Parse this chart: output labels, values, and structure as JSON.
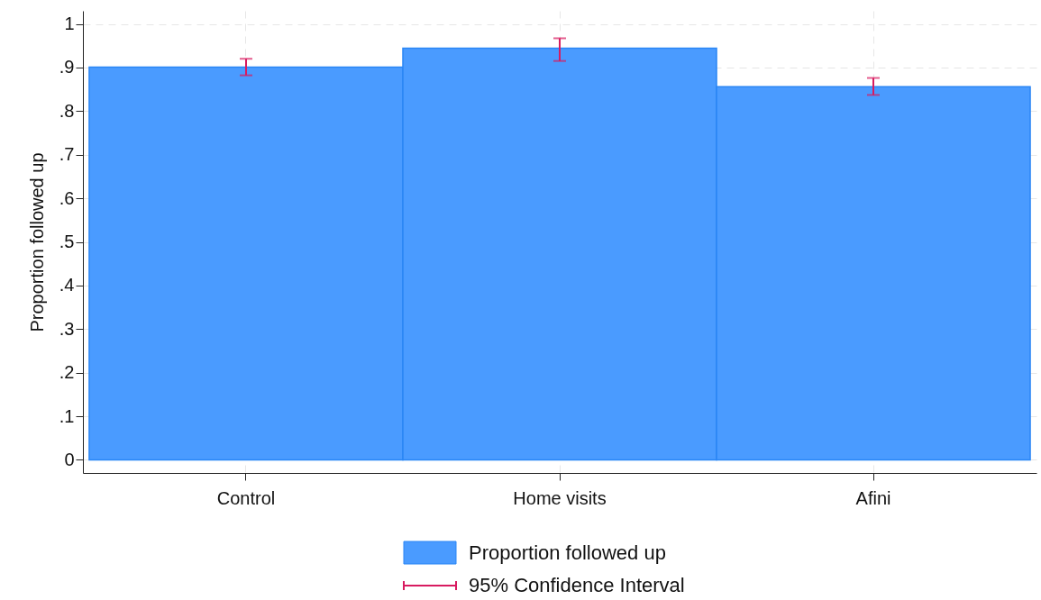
{
  "chart_data": {
    "type": "bar",
    "ylabel": "Proportion followed up",
    "categories": [
      "Control",
      "Home visits",
      "Afini"
    ],
    "series": [
      {
        "name": "Proportion followed up",
        "color": "#4a9bff",
        "values": [
          0.901,
          0.944,
          0.856
        ],
        "errors": [
          [
            0.882,
            0.92
          ],
          [
            0.915,
            0.967
          ],
          [
            0.837,
            0.876
          ]
        ]
      }
    ],
    "ylim": [
      -0.03,
      1.03
    ],
    "yticks": [
      {
        "value": 0,
        "label": "0"
      },
      {
        "value": 0.1,
        "label": ".1"
      },
      {
        "value": 0.2,
        "label": ".2"
      },
      {
        "value": 0.3,
        "label": ".3"
      },
      {
        "value": 0.4,
        "label": ".4"
      },
      {
        "value": 0.5,
        "label": ".5"
      },
      {
        "value": 0.6,
        "label": ".6"
      },
      {
        "value": 0.7,
        "label": ".7"
      },
      {
        "value": 0.8,
        "label": ".8"
      },
      {
        "value": 0.9,
        "label": ".9"
      },
      {
        "value": 1,
        "label": "1"
      }
    ],
    "annotations": [
      "95% Confidence Interval"
    ],
    "grid": true,
    "legend": "bottom"
  }
}
